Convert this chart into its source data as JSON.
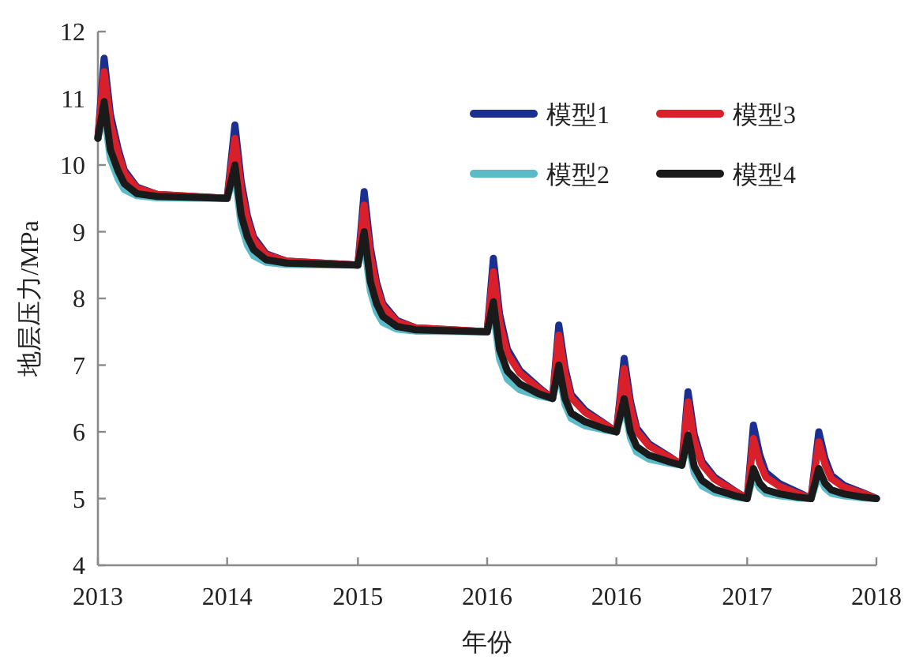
{
  "chart_data": {
    "type": "line",
    "xlabel": "年份",
    "ylabel": "地层压力/MPa",
    "xlim": [
      2013,
      2018
    ],
    "ylim": [
      4,
      12
    ],
    "xticks": [
      2013,
      {
        "value": 2013.83,
        "label": "2014"
      },
      {
        "value": 2014.67,
        "label": "2015"
      },
      {
        "value": 2015.5,
        "label": "2016"
      },
      {
        "value": 2016.33,
        "label": "2016"
      },
      {
        "value": 2017.17,
        "label": "2017"
      },
      2018
    ],
    "yticks": [
      4,
      5,
      6,
      7,
      8,
      9,
      10,
      11,
      12
    ],
    "legend": "top right",
    "line_style": "solid",
    "x": [
      2013,
      2013.04,
      2013.08,
      2013.13,
      2013.17,
      2013.25,
      2013.38,
      2013.83,
      2013.88,
      2013.92,
      2013.96,
      2014.0,
      2014.08,
      2014.21,
      2014.67,
      2014.71,
      2014.75,
      2014.79,
      2014.83,
      2014.92,
      2015.04,
      2015.5,
      2015.54,
      2015.58,
      2015.63,
      2015.71,
      2015.83,
      2015.92,
      2015.96,
      2016.0,
      2016.04,
      2016.13,
      2016.25,
      2016.33,
      2016.38,
      2016.42,
      2016.46,
      2016.54,
      2016.67,
      2016.75,
      2016.79,
      2016.83,
      2016.88,
      2016.96,
      2017.08,
      2017.17,
      2017.21,
      2017.25,
      2017.29,
      2017.38,
      2017.5,
      2017.58,
      2017.63,
      2017.67,
      2017.71,
      2017.79,
      2017.92,
      2018
    ],
    "series": [
      {
        "name": "模型1",
        "color": "#1a2f8f",
        "values": [
          10.4,
          11.6,
          10.76,
          10.24,
          9.92,
          9.67,
          9.56,
          9.5,
          10.6,
          9.76,
          9.24,
          8.92,
          8.67,
          8.56,
          8.5,
          9.6,
          8.76,
          8.24,
          7.92,
          7.67,
          7.56,
          7.5,
          8.6,
          7.76,
          7.24,
          6.92,
          6.67,
          6.5,
          7.6,
          6.96,
          6.56,
          6.32,
          6.13,
          6.0,
          7.1,
          6.46,
          6.06,
          5.82,
          5.63,
          5.5,
          6.6,
          5.96,
          5.56,
          5.32,
          5.13,
          5.0,
          6.1,
          5.66,
          5.39,
          5.22,
          5.09,
          5.0,
          6.0,
          5.6,
          5.35,
          5.2,
          5.08,
          5.0
        ]
      },
      {
        "name": "模型3",
        "color": "#d9202a",
        "values": [
          10.4,
          11.4,
          10.64,
          10.17,
          9.88,
          9.65,
          9.56,
          9.5,
          10.4,
          9.64,
          9.17,
          8.88,
          8.65,
          8.56,
          8.5,
          9.4,
          8.64,
          8.17,
          7.88,
          7.65,
          7.56,
          7.5,
          8.4,
          7.64,
          7.17,
          6.88,
          6.65,
          6.5,
          7.45,
          6.87,
          6.51,
          6.29,
          6.12,
          6.0,
          6.95,
          6.37,
          6.01,
          5.79,
          5.62,
          5.5,
          6.45,
          5.87,
          5.51,
          5.29,
          5.12,
          5.0,
          5.9,
          5.54,
          5.32,
          5.18,
          5.07,
          5.0,
          5.85,
          5.51,
          5.3,
          5.17,
          5.07,
          5.0
        ]
      },
      {
        "name": "模型2",
        "color": "#5bbcc8",
        "values": [
          10.4,
          10.8,
          10.09,
          9.79,
          9.63,
          9.54,
          9.51,
          9.5,
          9.85,
          9.11,
          8.8,
          8.64,
          8.54,
          8.51,
          8.5,
          8.85,
          8.11,
          7.8,
          7.64,
          7.54,
          7.51,
          7.5,
          7.8,
          7.09,
          6.79,
          6.63,
          6.54,
          6.5,
          6.9,
          6.41,
          6.2,
          6.09,
          6.03,
          6.0,
          6.4,
          5.91,
          5.7,
          5.59,
          5.53,
          5.5,
          5.85,
          5.38,
          5.19,
          5.09,
          5.03,
          5.0,
          5.35,
          5.16,
          5.08,
          5.04,
          5.01,
          5.0,
          5.35,
          5.16,
          5.08,
          5.04,
          5.01,
          5.0
        ]
      },
      {
        "name": "模型4",
        "color": "#1a1a1a",
        "values": [
          10.4,
          10.95,
          10.23,
          9.91,
          9.72,
          9.57,
          9.53,
          9.5,
          10.0,
          9.25,
          8.92,
          8.73,
          8.58,
          8.53,
          8.5,
          9.0,
          8.25,
          7.92,
          7.73,
          7.58,
          7.53,
          7.5,
          7.95,
          7.23,
          6.91,
          6.72,
          6.57,
          6.5,
          7.0,
          6.5,
          6.28,
          6.15,
          6.05,
          6.0,
          6.5,
          6.0,
          5.78,
          5.65,
          5.55,
          5.5,
          5.95,
          5.48,
          5.27,
          5.14,
          5.05,
          5.0,
          5.45,
          5.23,
          5.13,
          5.07,
          5.02,
          5.0,
          5.45,
          5.23,
          5.13,
          5.07,
          5.02,
          5.0
        ]
      }
    ]
  }
}
